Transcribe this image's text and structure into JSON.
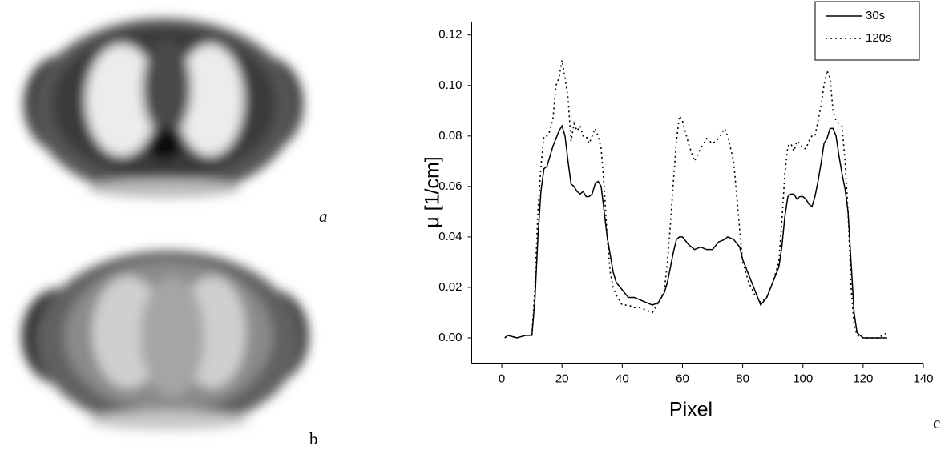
{
  "chart_data": {
    "type": "line",
    "xlabel": "Pixel",
    "ylabel": "μ [1/cm]",
    "xlim": [
      -10,
      140
    ],
    "xticks": [
      0,
      20,
      40,
      60,
      80,
      100,
      120,
      140
    ],
    "ylim": [
      -0.01,
      0.125
    ],
    "yticks": [
      {
        "value": 0,
        "label": "0.00"
      },
      0.02,
      0.04,
      0.06,
      0.08,
      {
        "value": 0.1,
        "label": "0.10"
      },
      0.12
    ],
    "grid": false,
    "legend": "upper right",
    "x": [
      1,
      2,
      5,
      8,
      10,
      11,
      12,
      13,
      14,
      15,
      16,
      17,
      18,
      19,
      20,
      21,
      22,
      23,
      24,
      25,
      26,
      27,
      28,
      29,
      30,
      31,
      32,
      33,
      34,
      35,
      36,
      37,
      38,
      40,
      42,
      44,
      46,
      48,
      50,
      52,
      54,
      55,
      56,
      57,
      58,
      59,
      60,
      62,
      64,
      66,
      68,
      70,
      72,
      74,
      75,
      77,
      79,
      80,
      82,
      84,
      86,
      88,
      90,
      92,
      93,
      94,
      95,
      96,
      97,
      98,
      99,
      100,
      101,
      102,
      103,
      104,
      105,
      106,
      107,
      108,
      109,
      110,
      111,
      112,
      113,
      114,
      115,
      116,
      117,
      118,
      120,
      125,
      128
    ],
    "series": [
      {
        "name": "30s",
        "color": "#000000",
        "dash": "solid",
        "values": [
          0,
          0.001,
          0,
          0.001,
          0.001,
          0.015,
          0.04,
          0.058,
          0.067,
          0.068,
          0.072,
          0.076,
          0.079,
          0.082,
          0.084,
          0.08,
          0.07,
          0.061,
          0.06,
          0.058,
          0.057,
          0.058,
          0.056,
          0.056,
          0.057,
          0.061,
          0.062,
          0.06,
          0.05,
          0.04,
          0.033,
          0.026,
          0.022,
          0.019,
          0.016,
          0.016,
          0.015,
          0.014,
          0.013,
          0.014,
          0.018,
          0.022,
          0.028,
          0.034,
          0.039,
          0.04,
          0.04,
          0.037,
          0.035,
          0.036,
          0.035,
          0.035,
          0.038,
          0.039,
          0.04,
          0.039,
          0.036,
          0.031,
          0.025,
          0.019,
          0.013,
          0.016,
          0.022,
          0.028,
          0.036,
          0.048,
          0.056,
          0.057,
          0.057,
          0.055,
          0.056,
          0.056,
          0.055,
          0.053,
          0.052,
          0.056,
          0.062,
          0.069,
          0.077,
          0.079,
          0.083,
          0.083,
          0.08,
          0.072,
          0.065,
          0.059,
          0.05,
          0.03,
          0.01,
          0.002,
          0,
          0,
          0
        ]
      },
      {
        "name": "120s",
        "color": "#000000",
        "dash": "dotted",
        "values": [
          0,
          0.001,
          0,
          0.001,
          0.001,
          0.02,
          0.05,
          0.068,
          0.08,
          0.08,
          0.082,
          0.087,
          0.1,
          0.103,
          0.11,
          0.103,
          0.095,
          0.078,
          0.085,
          0.082,
          0.084,
          0.08,
          0.08,
          0.077,
          0.08,
          0.083,
          0.08,
          0.075,
          0.06,
          0.04,
          0.026,
          0.02,
          0.017,
          0.013,
          0.013,
          0.012,
          0.012,
          0.011,
          0.01,
          0.014,
          0.019,
          0.03,
          0.045,
          0.062,
          0.078,
          0.088,
          0.086,
          0.077,
          0.07,
          0.075,
          0.079,
          0.077,
          0.079,
          0.083,
          0.08,
          0.07,
          0.043,
          0.03,
          0.022,
          0.017,
          0.014,
          0.016,
          0.022,
          0.03,
          0.046,
          0.065,
          0.076,
          0.077,
          0.074,
          0.078,
          0.077,
          0.075,
          0.075,
          0.078,
          0.08,
          0.08,
          0.086,
          0.092,
          0.1,
          0.106,
          0.103,
          0.09,
          0.086,
          0.085,
          0.084,
          0.07,
          0.05,
          0.02,
          0.005,
          0.001,
          0,
          0,
          0.002
        ]
      }
    ]
  },
  "panel_labels": [
    "a",
    "b",
    "c"
  ]
}
